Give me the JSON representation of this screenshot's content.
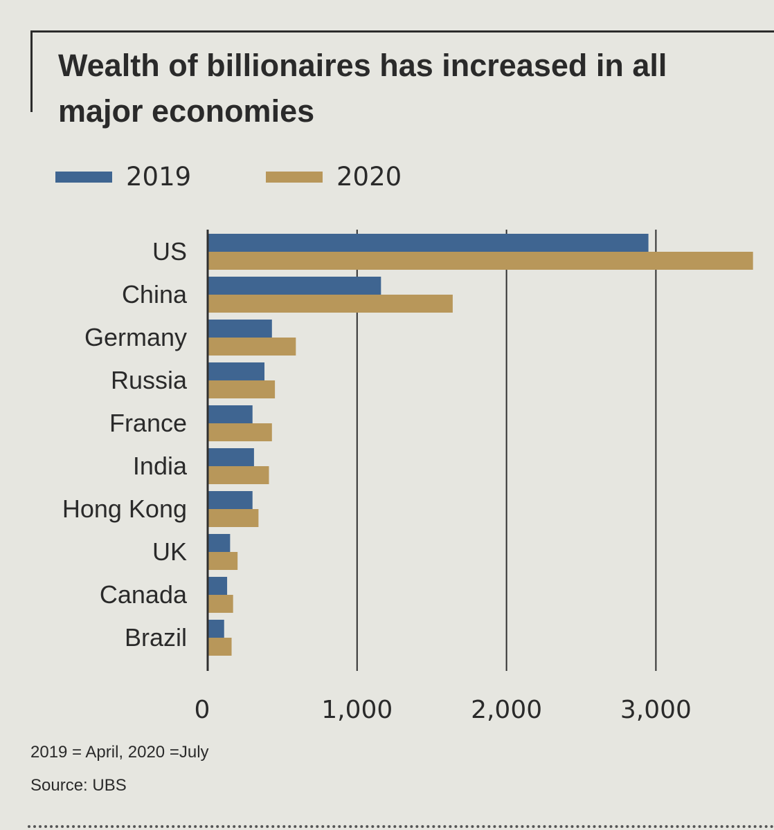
{
  "chart_data": {
    "type": "bar",
    "orientation": "horizontal",
    "title": "Wealth of billionaires has increased in all major economies",
    "categories": [
      "US",
      "China",
      "Germany",
      "Russia",
      "France",
      "India",
      "Hong Kong",
      "UK",
      "Canada",
      "Brazil"
    ],
    "series": [
      {
        "name": "2019",
        "color": "#3f6591",
        "values": [
          2950,
          1160,
          430,
          380,
          300,
          310,
          300,
          150,
          130,
          110
        ]
      },
      {
        "name": "2020",
        "color": "#b8975a",
        "values": [
          3650,
          1640,
          590,
          450,
          430,
          410,
          340,
          200,
          170,
          160
        ]
      }
    ],
    "xticks": [
      "0",
      "1,000",
      "2,000",
      "3,000"
    ],
    "xtick_values": [
      0,
      1000,
      2000,
      3000
    ],
    "xlim": [
      0,
      3650
    ],
    "grid": true,
    "legend_position": "top-left"
  },
  "notes": {
    "dates": "2019 = April, 2020 =July",
    "source": "Source: UBS"
  }
}
